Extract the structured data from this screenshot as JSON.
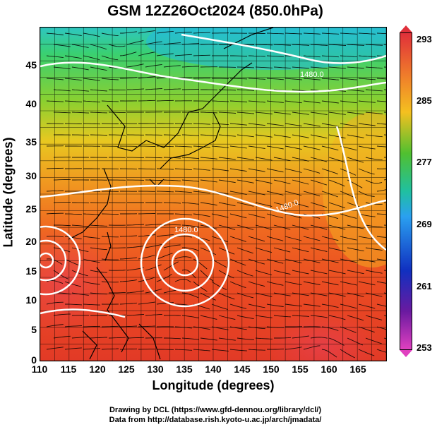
{
  "title": "GSM 12Z26Oct2024 (850.0hPa)",
  "x_axis": {
    "label": "Longitude (degrees)",
    "ticks": [
      "110",
      "115",
      "120",
      "125",
      "130",
      "135",
      "140",
      "145",
      "150",
      "155",
      "160",
      "165"
    ],
    "range": [
      110,
      170
    ]
  },
  "y_axis": {
    "label": "Latitude  (degrees)",
    "ticks": [
      "0",
      "5",
      "10",
      "15",
      "20",
      "25",
      "30",
      "35",
      "40",
      "45"
    ],
    "range": [
      0,
      50
    ]
  },
  "colorbar": {
    "ticks": [
      "293",
      "285",
      "277",
      "269",
      "261",
      "253"
    ],
    "range": [
      253,
      293
    ]
  },
  "contour_labels": [
    "1480.0",
    "1480.0",
    "1480.0"
  ],
  "credits": {
    "line1": "Drawing by DCL (https://www.gfd-dennou.org/library/dcl/)",
    "line2": "Data from http://database.rish.kyoto-u.ac.jp/arch/jmadata/"
  },
  "colors": {
    "warm": "#e83a2a",
    "mid": "#f0a020",
    "cool": "#40c040",
    "cold": "#2aa0f0"
  }
}
